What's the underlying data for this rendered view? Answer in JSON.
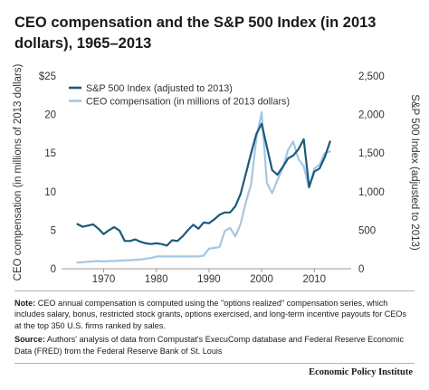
{
  "title": "CEO compensation and the S&P 500 Index (in 2013 dollars), 1965–2013",
  "chart_data": {
    "type": "line",
    "x_ticks": [
      1970,
      1980,
      1990,
      2000,
      2010
    ],
    "xlim": [
      1962,
      2017
    ],
    "y_left": {
      "label": "CEO compensation (in millions of 2013 dollars)",
      "range": [
        0,
        25
      ],
      "ticks": [
        0,
        5,
        10,
        15,
        20,
        25
      ],
      "tick_labels": [
        "0",
        "5",
        "10",
        "15",
        "20",
        "$25"
      ]
    },
    "y_right": {
      "label": "S&P 500 Index (adjusted to 2013)",
      "range": [
        0,
        2500
      ],
      "ticks": [
        0,
        500,
        1000,
        1500,
        2000,
        2500
      ],
      "tick_labels": [
        "0",
        "500",
        "1,000",
        "1,500",
        "2,000",
        "2,500"
      ]
    },
    "legend": [
      "S&P 500 Index (adjusted to 2013)",
      "CEO compensation (in millions of 2013 dollars)"
    ],
    "series": [
      {
        "name": "S&P 500 Index (adjusted to 2013)",
        "axis": "right",
        "color": "#1c5a7d",
        "x": [
          1965,
          1966,
          1967,
          1968,
          1969,
          1970,
          1971,
          1972,
          1973,
          1974,
          1975,
          1976,
          1977,
          1978,
          1979,
          1980,
          1981,
          1982,
          1983,
          1984,
          1985,
          1986,
          1987,
          1988,
          1989,
          1990,
          1991,
          1992,
          1993,
          1994,
          1995,
          1996,
          1997,
          1998,
          1999,
          2000,
          2001,
          2002,
          2003,
          2004,
          2005,
          2006,
          2007,
          2008,
          2009,
          2010,
          2011,
          2012,
          2013
        ],
        "y": [
          580,
          545,
          560,
          575,
          520,
          450,
          500,
          540,
          495,
          360,
          360,
          380,
          350,
          330,
          320,
          330,
          320,
          300,
          370,
          360,
          420,
          500,
          570,
          520,
          600,
          590,
          640,
          700,
          730,
          730,
          810,
          970,
          1230,
          1500,
          1750,
          1880,
          1580,
          1280,
          1220,
          1320,
          1430,
          1470,
          1550,
          1680,
          1060,
          1260,
          1300,
          1450,
          1650
        ]
      },
      {
        "name": "CEO compensation (in millions of 2013 dollars)",
        "axis": "left",
        "color": "#a3c7e3",
        "x": [
          1965,
          1966,
          1967,
          1968,
          1969,
          1970,
          1971,
          1972,
          1973,
          1974,
          1975,
          1976,
          1977,
          1978,
          1979,
          1980,
          1981,
          1982,
          1983,
          1984,
          1985,
          1986,
          1987,
          1988,
          1989,
          1990,
          1991,
          1992,
          1993,
          1994,
          1995,
          1996,
          1997,
          1998,
          1999,
          2000,
          2001,
          2002,
          2003,
          2004,
          2005,
          2006,
          2007,
          2008,
          2009,
          2010,
          2011,
          2012,
          2013
        ],
        "y": [
          0.8,
          0.85,
          0.9,
          0.95,
          1.0,
          0.95,
          1.0,
          1.0,
          1.05,
          1.1,
          1.1,
          1.15,
          1.2,
          1.3,
          1.4,
          1.6,
          1.6,
          1.6,
          1.6,
          1.6,
          1.6,
          1.6,
          1.6,
          1.6,
          1.7,
          2.6,
          2.7,
          2.8,
          4.9,
          5.3,
          4.2,
          5.8,
          8.6,
          11.0,
          17.0,
          20.3,
          11.1,
          9.8,
          11.5,
          13.0,
          15.4,
          16.5,
          14.2,
          13.3,
          10.5,
          13.0,
          13.5,
          15.0,
          15.2
        ]
      }
    ]
  },
  "notes": {
    "note_label": "Note:",
    "note_text": " CEO annual compensation is computed using the \"options realized\" compensation series, which includes salary, bonus, restricted stock grants, options exercised, and long-term incentive payouts for CEOs at the top 350 U.S. firms ranked by sales.",
    "source_label": "Source:",
    "source_text": " Authors' analysis of data from Compustat's ExecuComp database and Federal Reserve Economic Data (FRED) from the Federal Reserve Bank of St. Louis"
  },
  "brand": "Economic Policy Institute"
}
